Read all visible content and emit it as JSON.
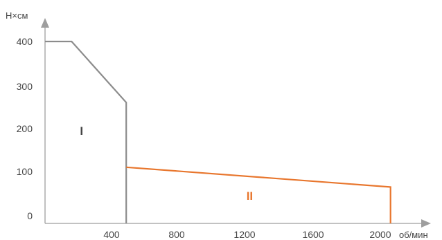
{
  "chart_data": {
    "type": "line",
    "ylabel": "Н×см",
    "xlabel": "об/мин",
    "xlim": [
      0,
      2200
    ],
    "ylim": [
      0,
      400
    ],
    "x_ticks": [
      "400",
      "800",
      "1200",
      "1600",
      "2000"
    ],
    "y_ticks": [
      "0",
      "100",
      "200",
      "300",
      "400"
    ],
    "grid": false,
    "legend": "none",
    "series": [
      {
        "color": "#8c8c8c",
        "points": [
          [
            0,
            400
          ],
          [
            160,
            400
          ],
          [
            490,
            262
          ],
          [
            490,
            0
          ]
        ]
      },
      {
        "color": "#e8762d",
        "points": [
          [
            490,
            110
          ],
          [
            2060,
            65
          ],
          [
            2060,
            0
          ]
        ]
      }
    ],
    "zone_labels": [
      {
        "text": "I",
        "x": 220,
        "y": 195,
        "color": "#444444"
      },
      {
        "text": "II",
        "x": 1230,
        "y": 45,
        "color": "#e8762d"
      }
    ],
    "axis_color": "#9e9e9e"
  }
}
